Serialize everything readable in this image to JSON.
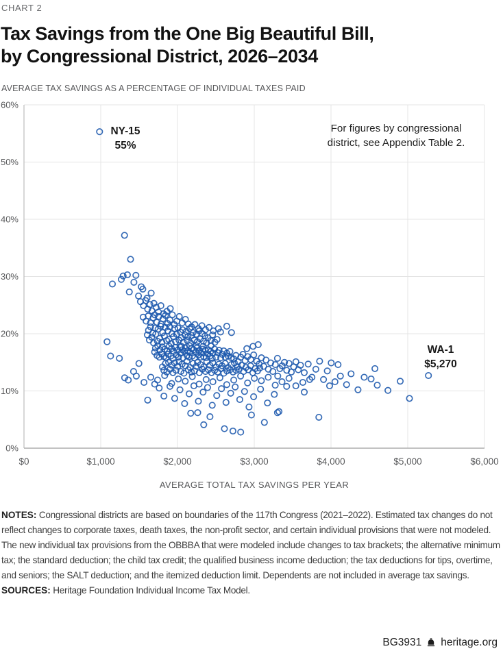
{
  "page": {
    "kicker": "CHART 2",
    "title_line1": "Tax Savings from the One Big Beautiful Bill,",
    "title_line2": "by Congressional District, 2026–2034",
    "subtitle": "AVERAGE TAX SAVINGS AS A PERCENTAGE OF INDIVIDUAL TAXES PAID",
    "notes_label": "NOTES:",
    "notes_text": "Congressional districts are based on boundaries of the 117th Congress (2021–2022). Estimated tax changes do not reflect changes to corporate taxes, death taxes, the non-profit sector, and certain individual provisions that were not modeled. The new individual tax provisions from the OBBBA that were modeled include changes to tax brackets; the alternative minimum tax; the standard deduction; the child tax credit; the qualified business income deduction; the tax deductions for tips, overtime, and seniors; the SALT deduction; and the itemized deduction limit. Dependents are not included in average tax savings.",
    "sources_label": "SOURCES:",
    "sources_text": "Heritage Foundation Individual Income Tax Model.",
    "footer_id": "BG3931",
    "footer_site": "heritage.org"
  },
  "chart_data": {
    "type": "scatter",
    "title": "Tax Savings from the One Big Beautiful Bill, by Congressional District, 2026–2034",
    "xlabel": "AVERAGE TOTAL TAX SAVINGS PER YEAR",
    "ylabel": "AVERAGE TAX SAVINGS AS A PERCENTAGE OF INDIVIDUAL TAXES PAID",
    "x_units": "dollars per year",
    "y_units": "percent of individual taxes paid",
    "xlim": [
      0,
      6000
    ],
    "ylim": [
      0,
      60
    ],
    "grid": true,
    "point_color": "#1b58ad",
    "grid_color": "#e4e4e4",
    "axis_color": "#bcbcbc",
    "tick_color": "#58595b",
    "x_ticks": [
      {
        "v": 0,
        "label": "$0"
      },
      {
        "v": 1000,
        "label": "$1,000"
      },
      {
        "v": 2000,
        "label": "$2,000"
      },
      {
        "v": 3000,
        "label": "$3,000"
      },
      {
        "v": 4000,
        "label": "$4,000"
      },
      {
        "v": 5000,
        "label": "$5,000"
      },
      {
        "v": 6000,
        "label": "$6,000"
      }
    ],
    "y_ticks": [
      {
        "v": 0,
        "label": "0%"
      },
      {
        "v": 10,
        "label": "10%"
      },
      {
        "v": 20,
        "label": "20%"
      },
      {
        "v": 30,
        "label": "30%"
      },
      {
        "v": 40,
        "label": "40%"
      },
      {
        "v": 50,
        "label": "50%"
      },
      {
        "v": 60,
        "label": "60%"
      }
    ],
    "callout": {
      "line1": "For figures by congressional",
      "line2": "district, see Appendix Table 2."
    },
    "labeled_points": [
      {
        "label": "NY-15",
        "value_label": "55%",
        "x": 985,
        "y": 55.3
      },
      {
        "label": "WA-1",
        "value_label": "$5,270",
        "x": 5270,
        "y": 12.7
      }
    ],
    "points": [
      [
        985,
        55.3
      ],
      [
        1310,
        37.2
      ],
      [
        1388,
        33.0
      ],
      [
        1152,
        28.7
      ],
      [
        1292,
        30.1
      ],
      [
        1347,
        30.3
      ],
      [
        1458,
        30.2
      ],
      [
        1268,
        29.5
      ],
      [
        1432,
        29.0
      ],
      [
        1528,
        28.2
      ],
      [
        1372,
        27.3
      ],
      [
        1492,
        26.6
      ],
      [
        1548,
        27.8
      ],
      [
        1603,
        26.2
      ],
      [
        1657,
        27.1
      ],
      [
        1586,
        25.8
      ],
      [
        1082,
        18.6
      ],
      [
        1128,
        16.1
      ],
      [
        1243,
        15.7
      ],
      [
        1312,
        12.3
      ],
      [
        1359,
        11.9
      ],
      [
        1428,
        13.4
      ],
      [
        1463,
        12.6
      ],
      [
        1497,
        14.8
      ],
      [
        1518,
        25.6
      ],
      [
        1557,
        24.9
      ],
      [
        1612,
        24.3
      ],
      [
        1641,
        25.1
      ],
      [
        1668,
        24.0
      ],
      [
        1693,
        25.3
      ],
      [
        1722,
        24.6
      ],
      [
        1753,
        23.8
      ],
      [
        1784,
        24.9
      ],
      [
        1818,
        23.5
      ],
      [
        1862,
        23.9
      ],
      [
        1906,
        24.4
      ],
      [
        1553,
        22.9
      ],
      [
        1591,
        22.2
      ],
      [
        1619,
        23.1
      ],
      [
        1648,
        21.9
      ],
      [
        1682,
        22.8
      ],
      [
        1703,
        23.3
      ],
      [
        1731,
        22.0
      ],
      [
        1757,
        23.0
      ],
      [
        1786,
        21.7
      ],
      [
        1812,
        22.6
      ],
      [
        1843,
        23.2
      ],
      [
        1871,
        21.8
      ],
      [
        1902,
        22.4
      ],
      [
        1933,
        23.3
      ],
      [
        1958,
        21.6
      ],
      [
        1991,
        22.2
      ],
      [
        2023,
        23.0
      ],
      [
        2062,
        21.9
      ],
      [
        2104,
        22.5
      ],
      [
        2141,
        21.7
      ],
      [
        2183,
        21.2
      ],
      [
        2227,
        21.6
      ],
      [
        2272,
        20.9
      ],
      [
        2318,
        21.4
      ],
      [
        2364,
        20.7
      ],
      [
        2412,
        21.1
      ],
      [
        2467,
        20.5
      ],
      [
        2533,
        20.9
      ],
      [
        2561,
        20.3
      ],
      [
        2642,
        21.3
      ],
      [
        2704,
        20.2
      ],
      [
        1607,
        19.8
      ],
      [
        1622,
        20.6
      ],
      [
        1634,
        18.9
      ],
      [
        1649,
        21.2
      ],
      [
        1663,
        19.4
      ],
      [
        1677,
        20.1
      ],
      [
        1688,
        18.4
      ],
      [
        1709,
        21.0
      ],
      [
        1717,
        19.9
      ],
      [
        1738,
        18.7
      ],
      [
        1747,
        20.8
      ],
      [
        1769,
        19.2
      ],
      [
        1781,
        21.3
      ],
      [
        1797,
        18.5
      ],
      [
        1808,
        20.2
      ],
      [
        1829,
        19.6
      ],
      [
        1841,
        21.1
      ],
      [
        1858,
        18.8
      ],
      [
        1873,
        20.5
      ],
      [
        1887,
        19.0
      ],
      [
        1899,
        21.2
      ],
      [
        1918,
        18.3
      ],
      [
        1927,
        20.0
      ],
      [
        1949,
        19.5
      ],
      [
        1963,
        20.9
      ],
      [
        1974,
        18.6
      ],
      [
        1988,
        19.9
      ],
      [
        2007,
        21.0
      ],
      [
        2019,
        18.9
      ],
      [
        2038,
        20.3
      ],
      [
        2049,
        19.3
      ],
      [
        2067,
        20.7
      ],
      [
        2078,
        18.5
      ],
      [
        2096,
        19.8
      ],
      [
        2113,
        20.4
      ],
      [
        2129,
        18.8
      ],
      [
        2137,
        19.5
      ],
      [
        2158,
        20.9
      ],
      [
        2171,
        18.4
      ],
      [
        2186,
        19.7
      ],
      [
        2203,
        20.2
      ],
      [
        2219,
        18.9
      ],
      [
        2244,
        19.9
      ],
      [
        2258,
        18.6
      ],
      [
        2283,
        20.5
      ],
      [
        2297,
        19.1
      ],
      [
        2323,
        20.0
      ],
      [
        2338,
        18.7
      ],
      [
        2357,
        19.6
      ],
      [
        2379,
        18.4
      ],
      [
        2398,
        19.3
      ],
      [
        2433,
        18.8
      ],
      [
        2457,
        19.8
      ],
      [
        2487,
        18.5
      ],
      [
        2516,
        19.0
      ],
      [
        1702,
        16.8
      ],
      [
        1713,
        17.5
      ],
      [
        1733,
        16.2
      ],
      [
        1742,
        17.9
      ],
      [
        1764,
        15.9
      ],
      [
        1773,
        17.2
      ],
      [
        1792,
        16.5
      ],
      [
        1803,
        17.7
      ],
      [
        1823,
        16.0
      ],
      [
        1832,
        17.3
      ],
      [
        1853,
        15.8
      ],
      [
        1867,
        17.0
      ],
      [
        1879,
        16.4
      ],
      [
        1892,
        17.8
      ],
      [
        1913,
        16.1
      ],
      [
        1922,
        17.4
      ],
      [
        1943,
        15.7
      ],
      [
        1952,
        16.9
      ],
      [
        1972,
        17.6
      ],
      [
        1983,
        16.3
      ],
      [
        2002,
        17.1
      ],
      [
        2013,
        15.9
      ],
      [
        2033,
        17.7
      ],
      [
        2042,
        16.6
      ],
      [
        2063,
        17.2
      ],
      [
        2072,
        15.8
      ],
      [
        2092,
        16.9
      ],
      [
        2103,
        17.5
      ],
      [
        2122,
        16.2
      ],
      [
        2133,
        17.0
      ],
      [
        2152,
        15.9
      ],
      [
        2163,
        16.7
      ],
      [
        2182,
        17.4
      ],
      [
        2193,
        16.1
      ],
      [
        2212,
        17.2
      ],
      [
        2223,
        15.8
      ],
      [
        2242,
        16.8
      ],
      [
        2253,
        17.5
      ],
      [
        2273,
        16.3
      ],
      [
        2282,
        17.0
      ],
      [
        2303,
        15.9
      ],
      [
        2312,
        16.6
      ],
      [
        2332,
        17.3
      ],
      [
        2343,
        16.0
      ],
      [
        2362,
        17.1
      ],
      [
        2373,
        15.8
      ],
      [
        2393,
        16.5
      ],
      [
        2402,
        17.2
      ],
      [
        2423,
        16.1
      ],
      [
        2432,
        16.9
      ],
      [
        2453,
        15.7
      ],
      [
        2462,
        16.6
      ],
      [
        2483,
        17.3
      ],
      [
        2502,
        15.9
      ],
      [
        2523,
        16.7
      ],
      [
        2542,
        17.1
      ],
      [
        2563,
        15.8
      ],
      [
        2582,
        16.4
      ],
      [
        2603,
        17.0
      ],
      [
        2622,
        15.9
      ],
      [
        2643,
        16.6
      ],
      [
        2662,
        16.1
      ],
      [
        2683,
        16.9
      ],
      [
        2702,
        15.8
      ],
      [
        2052,
        17.8
      ],
      [
        2156,
        17.9
      ],
      [
        2246,
        17.9
      ],
      [
        2336,
        17.8
      ],
      [
        2436,
        17.9
      ],
      [
        1804,
        14.2
      ],
      [
        1822,
        13.6
      ],
      [
        1843,
        14.8
      ],
      [
        1861,
        13.3
      ],
      [
        1884,
        15.0
      ],
      [
        1903,
        13.8
      ],
      [
        1924,
        14.5
      ],
      [
        1941,
        13.2
      ],
      [
        1962,
        14.9
      ],
      [
        1981,
        13.6
      ],
      [
        2004,
        14.3
      ],
      [
        2021,
        15.1
      ],
      [
        2044,
        13.4
      ],
      [
        2061,
        14.7
      ],
      [
        2084,
        13.1
      ],
      [
        2101,
        14.4
      ],
      [
        2124,
        15.2
      ],
      [
        2141,
        13.7
      ],
      [
        2164,
        14.1
      ],
      [
        2181,
        13.3
      ],
      [
        2204,
        14.8
      ],
      [
        2221,
        13.5
      ],
      [
        2244,
        14.3
      ],
      [
        2261,
        15.0
      ],
      [
        2284,
        13.2
      ],
      [
        2301,
        14.6
      ],
      [
        2324,
        13.8
      ],
      [
        2341,
        14.2
      ],
      [
        2364,
        13.4
      ],
      [
        2381,
        15.1
      ],
      [
        2404,
        13.7
      ],
      [
        2421,
        14.5
      ],
      [
        2444,
        13.2
      ],
      [
        2461,
        14.9
      ],
      [
        2484,
        13.6
      ],
      [
        2501,
        14.2
      ],
      [
        2524,
        13.3
      ],
      [
        2541,
        14.7
      ],
      [
        2564,
        13.9
      ],
      [
        2581,
        14.4
      ],
      [
        2604,
        13.1
      ],
      [
        2621,
        14.8
      ],
      [
        2644,
        13.5
      ],
      [
        2661,
        14.1
      ],
      [
        2684,
        13.7
      ],
      [
        2701,
        14.6
      ],
      [
        2724,
        13.3
      ],
      [
        2741,
        14.9
      ],
      [
        2764,
        13.6
      ],
      [
        2781,
        14.2
      ],
      [
        2804,
        13.8
      ],
      [
        2833,
        14.5
      ],
      [
        2862,
        13.4
      ],
      [
        2891,
        14.1
      ],
      [
        2923,
        13.7
      ],
      [
        2952,
        14.4
      ],
      [
        2981,
        13.2
      ],
      [
        3012,
        13.9
      ],
      [
        3043,
        13.5
      ],
      [
        3072,
        14.0
      ],
      [
        2733,
        15.6
      ],
      [
        2762,
        16.2
      ],
      [
        2791,
        15.1
      ],
      [
        2824,
        15.9
      ],
      [
        2853,
        16.4
      ],
      [
        2882,
        15.3
      ],
      [
        2913,
        16.0
      ],
      [
        2954,
        15.5
      ],
      [
        2993,
        16.3
      ],
      [
        3032,
        15.2
      ],
      [
        3063,
        14.7
      ],
      [
        3094,
        15.8
      ],
      [
        3123,
        14.3
      ],
      [
        3154,
        15.4
      ],
      [
        3183,
        13.8
      ],
      [
        3214,
        14.9
      ],
      [
        3243,
        13.4
      ],
      [
        3274,
        14.6
      ],
      [
        3303,
        15.7
      ],
      [
        3334,
        13.9
      ],
      [
        3363,
        14.4
      ],
      [
        3394,
        15.0
      ],
      [
        3423,
        13.6
      ],
      [
        3454,
        14.8
      ],
      [
        3483,
        13.3
      ],
      [
        3514,
        14.2
      ],
      [
        3543,
        15.1
      ],
      [
        3574,
        13.7
      ],
      [
        3603,
        14.5
      ],
      [
        2984,
        17.8
      ],
      [
        3052,
        18.1
      ],
      [
        2904,
        17.4
      ],
      [
        3306,
        12.6
      ],
      [
        1563,
        11.5
      ],
      [
        1652,
        12.4
      ],
      [
        1741,
        11.9
      ],
      [
        1833,
        12.7
      ],
      [
        1924,
        11.3
      ],
      [
        2012,
        12.1
      ],
      [
        2101,
        11.7
      ],
      [
        2193,
        12.5
      ],
      [
        2282,
        11.2
      ],
      [
        2373,
        12.0
      ],
      [
        2462,
        11.6
      ],
      [
        2553,
        12.3
      ],
      [
        2642,
        11.1
      ],
      [
        2733,
        11.9
      ],
      [
        2822,
        12.6
      ],
      [
        2913,
        11.4
      ],
      [
        3002,
        12.2
      ],
      [
        3093,
        11.8
      ],
      [
        3182,
        12.4
      ],
      [
        3273,
        11.0
      ],
      [
        3362,
        11.6
      ],
      [
        3453,
        12.2
      ],
      [
        3542,
        10.9
      ],
      [
        3633,
        11.5
      ],
      [
        3722,
        12.0
      ],
      [
        3652,
        13.2
      ],
      [
        3703,
        14.7
      ],
      [
        3752,
        12.4
      ],
      [
        3803,
        13.8
      ],
      [
        3852,
        15.2
      ],
      [
        3903,
        12.0
      ],
      [
        3952,
        13.5
      ],
      [
        4003,
        14.9
      ],
      [
        4052,
        11.6
      ],
      [
        4092,
        14.6
      ],
      [
        4122,
        12.6
      ],
      [
        4203,
        11.1
      ],
      [
        4262,
        13.0
      ],
      [
        4352,
        10.2
      ],
      [
        4432,
        12.4
      ],
      [
        4522,
        12.1
      ],
      [
        4572,
        13.9
      ],
      [
        4603,
        11.0
      ],
      [
        4742,
        10.1
      ],
      [
        4902,
        11.7
      ],
      [
        5022,
        8.7
      ],
      [
        3982,
        10.9
      ],
      [
        1612,
        8.4
      ],
      [
        1703,
        11.2
      ],
      [
        1762,
        10.5
      ],
      [
        1823,
        9.1
      ],
      [
        1902,
        10.8
      ],
      [
        1963,
        8.7
      ],
      [
        2032,
        10.2
      ],
      [
        2093,
        7.8
      ],
      [
        2152,
        9.5
      ],
      [
        2213,
        10.9
      ],
      [
        2272,
        8.2
      ],
      [
        2333,
        9.8
      ],
      [
        2392,
        10.6
      ],
      [
        2453,
        7.5
      ],
      [
        2512,
        9.2
      ],
      [
        2573,
        10.4
      ],
      [
        2632,
        8.0
      ],
      [
        2693,
        9.6
      ],
      [
        2752,
        10.7
      ],
      [
        2812,
        8.5
      ],
      [
        2873,
        9.9
      ],
      [
        2932,
        7.2
      ],
      [
        2992,
        9.0
      ],
      [
        3082,
        10.3
      ],
      [
        3172,
        7.9
      ],
      [
        3262,
        9.4
      ],
      [
        3422,
        10.8
      ],
      [
        3652,
        9.8
      ],
      [
        2263,
        6.2
      ],
      [
        2342,
        4.1
      ],
      [
        2423,
        5.5
      ],
      [
        2612,
        3.4
      ],
      [
        2722,
        3.0
      ],
      [
        2823,
        2.8
      ],
      [
        2963,
        5.8
      ],
      [
        3132,
        4.5
      ],
      [
        3322,
        6.4
      ],
      [
        3842,
        5.4
      ],
      [
        2172,
        6.1
      ],
      [
        3303,
        6.2
      ],
      [
        5270,
        12.7
      ]
    ]
  }
}
